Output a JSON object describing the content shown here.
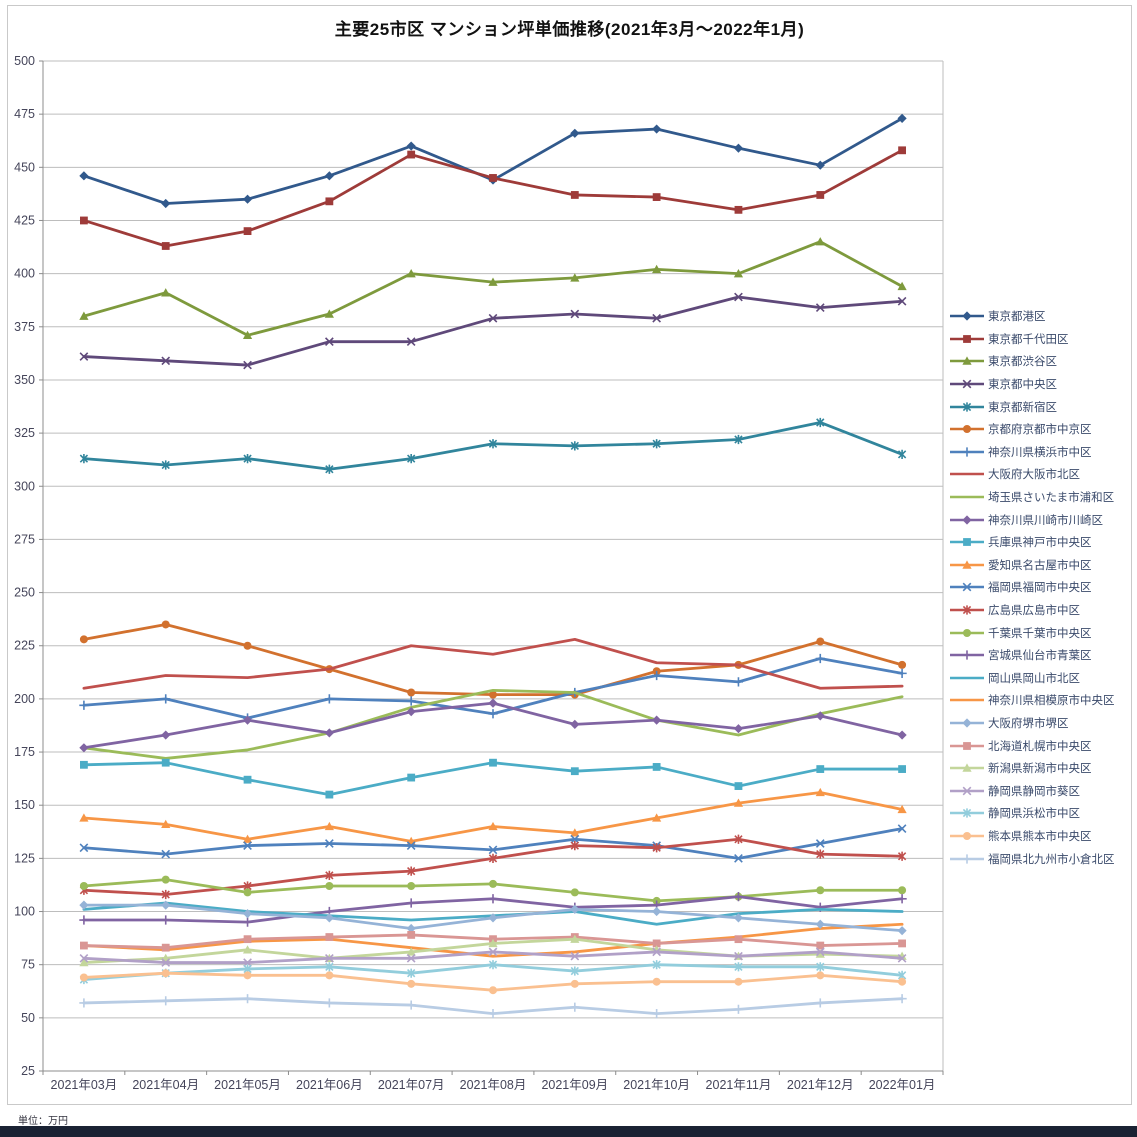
{
  "title": "主要25市区 マンション坪単価推移(2021年3月～2022年1月)",
  "footer": {
    "unit_note": "単位：万円"
  },
  "chart_data": {
    "type": "line",
    "title": "主要25市区 マンション坪単価推移(2021年3月～2022年1月)",
    "xlabel": "",
    "ylabel": "単位：万円",
    "ylim": [
      25,
      500
    ],
    "ytick_step": 25,
    "grid": true,
    "legend_position": "right",
    "categories": [
      "2021年03月",
      "2021年04月",
      "2021年05月",
      "2021年06月",
      "2021年07月",
      "2021年08月",
      "2021年09月",
      "2021年10月",
      "2021年11月",
      "2021年12月",
      "2022年01月"
    ],
    "series": [
      {
        "name": "東京都港区",
        "color": "#31598C",
        "marker": "diamond",
        "values": [
          446,
          433,
          435,
          446,
          460,
          444,
          466,
          468,
          459,
          451,
          473
        ]
      },
      {
        "name": "東京都千代田区",
        "color": "#9E3B39",
        "marker": "square",
        "values": [
          425,
          413,
          420,
          434,
          456,
          445,
          437,
          436,
          430,
          437,
          458
        ]
      },
      {
        "name": "東京都渋谷区",
        "color": "#7E9A3D",
        "marker": "triangle",
        "values": [
          380,
          391,
          371,
          381,
          400,
          396,
          398,
          402,
          400,
          415,
          394
        ]
      },
      {
        "name": "東京都中央区",
        "color": "#5F497A",
        "marker": "x",
        "values": [
          361,
          359,
          357,
          368,
          368,
          379,
          381,
          379,
          389,
          384,
          387
        ]
      },
      {
        "name": "東京都新宿区",
        "color": "#31859C",
        "marker": "asterisk",
        "values": [
          313,
          310,
          313,
          308,
          313,
          320,
          319,
          320,
          322,
          330,
          315
        ]
      },
      {
        "name": "京都府京都市中京区",
        "color": "#D2712E",
        "marker": "circle",
        "values": [
          228,
          235,
          225,
          214,
          203,
          202,
          202,
          213,
          216,
          227,
          216
        ]
      },
      {
        "name": "神奈川県横浜市中区",
        "color": "#4F81BD",
        "marker": "plus",
        "values": [
          197,
          200,
          191,
          200,
          199,
          193,
          203,
          211,
          208,
          219,
          212
        ]
      },
      {
        "name": "大阪府大阪市北区",
        "color": "#C0504D",
        "marker": "none",
        "values": [
          205,
          211,
          210,
          214,
          225,
          221,
          228,
          217,
          216,
          205,
          206
        ]
      },
      {
        "name": "埼玉県さいたま市浦和区",
        "color": "#9BBB59",
        "marker": "none",
        "values": [
          177,
          172,
          176,
          184,
          196,
          204,
          203,
          190,
          183,
          193,
          201
        ]
      },
      {
        "name": "神奈川県川崎市川崎区",
        "color": "#8064A2",
        "marker": "diamond",
        "values": [
          177,
          183,
          190,
          184,
          194,
          198,
          188,
          190,
          186,
          192,
          183
        ]
      },
      {
        "name": "兵庫県神戸市中央区",
        "color": "#4BACC6",
        "marker": "square",
        "values": [
          169,
          170,
          162,
          155,
          163,
          170,
          166,
          168,
          159,
          167,
          167
        ]
      },
      {
        "name": "愛知県名古屋市中区",
        "color": "#F79646",
        "marker": "triangle",
        "values": [
          144,
          141,
          134,
          140,
          133,
          140,
          137,
          144,
          151,
          156,
          148
        ]
      },
      {
        "name": "福岡県福岡市中央区",
        "color": "#4F81BD",
        "marker": "x",
        "values": [
          130,
          127,
          131,
          132,
          131,
          129,
          134,
          131,
          125,
          132,
          139
        ]
      },
      {
        "name": "広島県広島市中区",
        "color": "#C0504D",
        "marker": "asterisk",
        "values": [
          110,
          108,
          112,
          117,
          119,
          125,
          131,
          130,
          134,
          127,
          126
        ]
      },
      {
        "name": "千葉県千葉市中央区",
        "color": "#9BBB59",
        "marker": "circle",
        "values": [
          112,
          115,
          109,
          112,
          112,
          113,
          109,
          105,
          107,
          110,
          110
        ]
      },
      {
        "name": "宮城県仙台市青葉区",
        "color": "#8064A2",
        "marker": "plus",
        "values": [
          96,
          96,
          95,
          100,
          104,
          106,
          102,
          103,
          107,
          102,
          106
        ]
      },
      {
        "name": "岡山県岡山市北区",
        "color": "#4BACC6",
        "marker": "none",
        "values": [
          101,
          104,
          100,
          98,
          96,
          98,
          100,
          94,
          99,
          101,
          100
        ]
      },
      {
        "name": "神奈川県相模原市中央区",
        "color": "#F79646",
        "marker": "none",
        "values": [
          84,
          82,
          86,
          87,
          83,
          79,
          81,
          85,
          88,
          92,
          94
        ]
      },
      {
        "name": "大阪府堺市堺区",
        "color": "#95B3D7",
        "marker": "diamond",
        "values": [
          103,
          103,
          99,
          97,
          92,
          97,
          101,
          100,
          97,
          94,
          91
        ]
      },
      {
        "name": "北海道札幌市中央区",
        "color": "#D99694",
        "marker": "square",
        "values": [
          84,
          83,
          87,
          88,
          89,
          87,
          88,
          85,
          87,
          84,
          85
        ]
      },
      {
        "name": "新潟県新潟市中央区",
        "color": "#C3D69B",
        "marker": "triangle",
        "values": [
          76,
          78,
          82,
          78,
          81,
          85,
          87,
          82,
          79,
          80,
          79
        ]
      },
      {
        "name": "静岡県静岡市葵区",
        "color": "#B1A0C7",
        "marker": "x",
        "values": [
          78,
          76,
          76,
          78,
          78,
          81,
          79,
          81,
          79,
          81,
          78
        ]
      },
      {
        "name": "静岡県浜松市中区",
        "color": "#92CDDC",
        "marker": "asterisk",
        "values": [
          68,
          71,
          73,
          74,
          71,
          75,
          72,
          75,
          74,
          74,
          70
        ]
      },
      {
        "name": "熊本県熊本市中央区",
        "color": "#FAC090",
        "marker": "circle",
        "values": [
          69,
          71,
          70,
          70,
          66,
          63,
          66,
          67,
          67,
          70,
          67
        ]
      },
      {
        "name": "福岡県北九州市小倉北区",
        "color": "#B8CCE4",
        "marker": "plus",
        "values": [
          57,
          58,
          59,
          57,
          56,
          52,
          55,
          52,
          54,
          57,
          59
        ]
      }
    ]
  }
}
